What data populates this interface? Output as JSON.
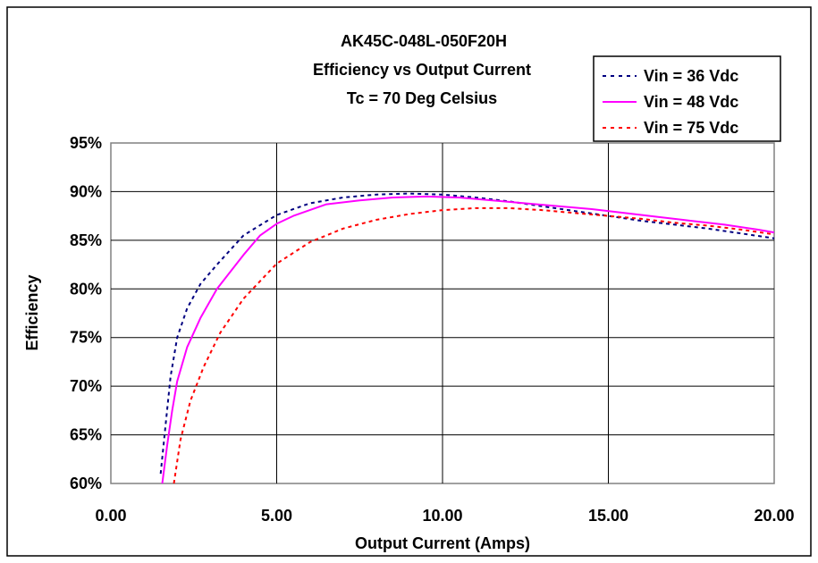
{
  "chart_data": {
    "type": "line",
    "title": [
      "AK45C-048L-050F20H",
      "Efficiency vs Output Current",
      "Tc = 70 Deg Celsius"
    ],
    "xlabel": "Output Current (Amps)",
    "ylabel": "Efficiency",
    "xlim": [
      0,
      20
    ],
    "ylim": [
      0.6,
      0.95
    ],
    "x_ticks": [
      0,
      5,
      10,
      15,
      20
    ],
    "x_tick_labels": [
      "0.00",
      "5.00",
      "10.00",
      "15.00",
      "20.00"
    ],
    "y_ticks": [
      0.6,
      0.65,
      0.7,
      0.75,
      0.8,
      0.85,
      0.9,
      0.95
    ],
    "y_tick_labels": [
      "60%",
      "65%",
      "70%",
      "75%",
      "80%",
      "85%",
      "90%",
      "95%"
    ],
    "grid": true,
    "legend_position": "top-right",
    "series": [
      {
        "name": "Vin = 36 Vdc",
        "color": "#000080",
        "dash": "dotted",
        "x": [
          1.5,
          1.65,
          1.8,
          2.0,
          2.3,
          2.7,
          3.2,
          4.0,
          5.0,
          6.0,
          7.0,
          8.0,
          9.0,
          10.0,
          11.0,
          12.0,
          13.0,
          14.0,
          15.0,
          16.0,
          17.0,
          18.0,
          19.0,
          20.0
        ],
        "y": [
          0.61,
          0.66,
          0.71,
          0.75,
          0.78,
          0.805,
          0.825,
          0.855,
          0.876,
          0.888,
          0.894,
          0.897,
          0.898,
          0.897,
          0.894,
          0.89,
          0.885,
          0.88,
          0.875,
          0.87,
          0.866,
          0.862,
          0.857,
          0.852
        ]
      },
      {
        "name": "Vin = 48 Vdc",
        "color": "#ff00ff",
        "dash": "solid",
        "x": [
          1.55,
          1.7,
          1.85,
          2.0,
          2.3,
          2.7,
          3.2,
          4.0,
          4.5,
          5.0,
          5.5,
          6.0,
          6.5,
          7.5,
          8.5,
          9.5,
          10.5,
          11.5,
          12.5,
          13.5,
          14.5,
          15.5,
          16.5,
          17.5,
          18.5,
          19.5,
          20.0
        ],
        "y": [
          0.6,
          0.64,
          0.675,
          0.705,
          0.74,
          0.77,
          0.8,
          0.835,
          0.855,
          0.867,
          0.875,
          0.881,
          0.887,
          0.891,
          0.894,
          0.895,
          0.894,
          0.891,
          0.888,
          0.885,
          0.882,
          0.878,
          0.874,
          0.87,
          0.866,
          0.861,
          0.858
        ]
      },
      {
        "name": "Vin = 75 Vdc",
        "color": "#ff0000",
        "dash": "dotted",
        "x": [
          1.9,
          2.1,
          2.4,
          2.8,
          3.3,
          4.0,
          5.0,
          6.0,
          7.0,
          8.0,
          9.0,
          10.0,
          11.0,
          12.0,
          13.0,
          14.0,
          15.0,
          16.0,
          17.0,
          18.0,
          19.0,
          20.0
        ],
        "y": [
          0.6,
          0.645,
          0.685,
          0.72,
          0.755,
          0.79,
          0.826,
          0.848,
          0.862,
          0.871,
          0.877,
          0.881,
          0.883,
          0.883,
          0.881,
          0.878,
          0.875,
          0.872,
          0.868,
          0.865,
          0.861,
          0.856
        ]
      }
    ]
  }
}
